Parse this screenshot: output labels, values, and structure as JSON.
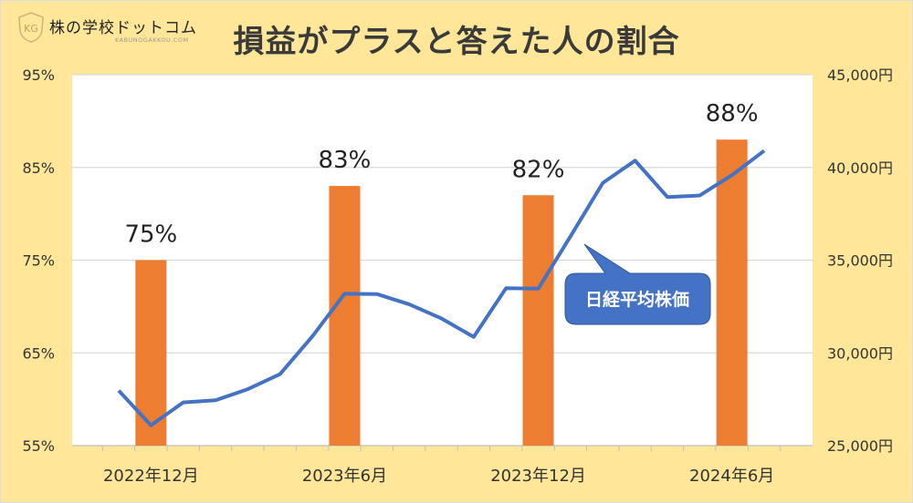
{
  "logo": {
    "name": "株の学校ドットコム",
    "sub": "KABUNOGAKKOU.COM",
    "mark": "KG"
  },
  "title": "損益がプラスと答えた人の割合",
  "chart_data": {
    "type": "bar+line",
    "title": "損益がプラスと答えた人の割合",
    "x_labels": [
      "2022年12月",
      "2023年6月",
      "2023年12月",
      "2024年6月"
    ],
    "left_axis": {
      "ticks": [
        "55%",
        "65%",
        "75%",
        "85%",
        "95%"
      ],
      "range": [
        55,
        95
      ]
    },
    "right_axis": {
      "ticks": [
        "25,000円",
        "30,000円",
        "35,000円",
        "40,000円",
        "45,000円"
      ],
      "range": [
        25000,
        45000
      ]
    },
    "bars": {
      "name": "損益がプラスと答えた人の割合",
      "months": [
        "2022-12",
        "2023-06",
        "2023-12",
        "2024-06"
      ],
      "values": [
        75,
        83,
        82,
        88
      ],
      "labels": [
        "75%",
        "83%",
        "82%",
        "88%"
      ],
      "color": "#ED7D31"
    },
    "line": {
      "name": "日経平均株価",
      "months": [
        "2022-11",
        "2022-12",
        "2023-01",
        "2023-02",
        "2023-03",
        "2023-04",
        "2023-05",
        "2023-06",
        "2023-07",
        "2023-08",
        "2023-09",
        "2023-10",
        "2023-11",
        "2023-12",
        "2024-01",
        "2024-02",
        "2024-03",
        "2024-04",
        "2024-05",
        "2024-06",
        "2024-07"
      ],
      "values": [
        27968,
        26095,
        27327,
        27446,
        28041,
        28856,
        30888,
        33189,
        33172,
        32619,
        31857,
        30858,
        33486,
        33464,
        36286,
        39166,
        40369,
        38405,
        38487,
        39583,
        40900
      ],
      "color": "#4472C4"
    },
    "grid": true
  }
}
